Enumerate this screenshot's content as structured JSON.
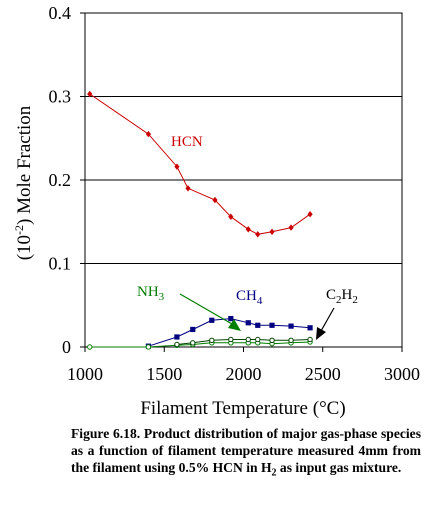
{
  "chart_data": {
    "type": "line",
    "xlabel": "Filament Temperature (°C)",
    "ylabel_prefix": "(10",
    "ylabel_exp": "-2",
    "ylabel_suffix": ") Mole Fraction",
    "xlim": [
      1000,
      3000
    ],
    "ylim": [
      0,
      0.4
    ],
    "xticks": [
      1000,
      1500,
      2000,
      2500,
      3000
    ],
    "yticks": [
      0,
      0.1,
      0.2,
      0.3,
      0.4
    ],
    "ytick_labels": [
      "0",
      "0.1",
      "0.2",
      "0.3",
      "0.4"
    ],
    "grid": "horizontal",
    "series": [
      {
        "name": "HCN",
        "color": "#cc0000",
        "x": [
          1030,
          1400,
          1580,
          1650,
          1820,
          1920,
          2030,
          2090,
          2180,
          2300,
          2420
        ],
        "y": [
          0.303,
          0.255,
          0.216,
          0.19,
          0.176,
          0.156,
          0.141,
          0.135,
          0.138,
          0.143,
          0.159
        ]
      },
      {
        "name": "CH4",
        "label_main": "CH",
        "label_sub": "4",
        "color": "#000080",
        "x": [
          1400,
          1580,
          1680,
          1800,
          1920,
          2030,
          2090,
          2180,
          2300,
          2420
        ],
        "y": [
          0.001,
          0.012,
          0.021,
          0.032,
          0.034,
          0.029,
          0.026,
          0.026,
          0.025,
          0.023
        ]
      },
      {
        "name": "NH3",
        "label_main": "NH",
        "label_sub": "3",
        "color": "#007f00",
        "x": [
          1030,
          1400,
          1580,
          1680,
          1800,
          1920,
          2030,
          2090,
          2180,
          2300,
          2420
        ],
        "y": [
          0.0,
          0.0,
          0.002,
          0.003,
          0.005,
          0.005,
          0.005,
          0.005,
          0.004,
          0.005,
          0.006
        ]
      },
      {
        "name": "C2H2",
        "label_parts": [
          "C",
          "2",
          "H",
          "2"
        ],
        "color": "#004400",
        "x": [
          1580,
          1680,
          1800,
          1920,
          2030,
          2090,
          2180,
          2300,
          2420
        ],
        "y": [
          0.003,
          0.005,
          0.008,
          0.009,
          0.009,
          0.009,
          0.008,
          0.008,
          0.009
        ]
      }
    ]
  },
  "caption": {
    "prefix": "Figure 6.18. Product distribution of major gas-phase species as a function of filament temperature measured 4mm from the filament using 0.5% HCN in H",
    "sub": "2",
    "suffix": " as input gas mixture."
  }
}
